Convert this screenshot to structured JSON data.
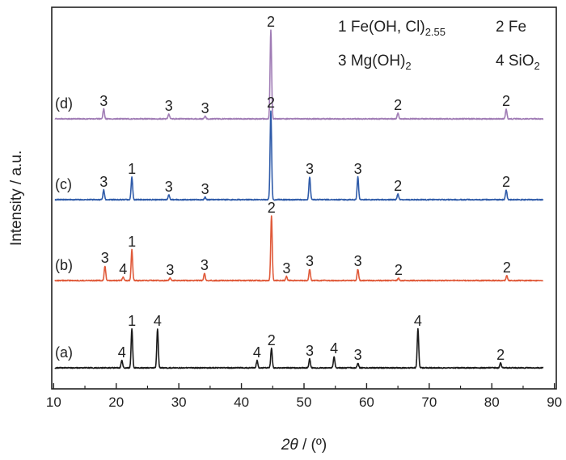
{
  "chart_data": {
    "type": "line",
    "xlabel_italic": "2θ",
    "xlabel_rest": " / (º)",
    "ylabel": "Intensity / a.u.",
    "xlim": [
      9.7,
      90.3
    ],
    "x_ticks": [
      10,
      20,
      30,
      40,
      50,
      60,
      70,
      80,
      90
    ],
    "y_ticks": "none",
    "legend": {
      "placement": "top-right",
      "entries": [
        {
          "prefix": "1 Fe(OH, Cl)",
          "sub": "2.55"
        },
        {
          "prefix": "2 Fe",
          "sub": ""
        },
        {
          "prefix": "3 Mg(OH)",
          "sub": "2"
        },
        {
          "prefix": "4 SiO",
          "sub": "2"
        }
      ]
    },
    "series": [
      {
        "name": "(d)",
        "color": "#a07cb5",
        "baseline": 3.0,
        "peaks": [
          {
            "x": 18.0,
            "h": 0.12,
            "label": "3"
          },
          {
            "x": 28.4,
            "h": 0.06,
            "label": "3"
          },
          {
            "x": 34.2,
            "h": 0.03,
            "label": "3"
          },
          {
            "x": 44.7,
            "h": 1.1,
            "label": "2"
          },
          {
            "x": 65.0,
            "h": 0.07,
            "label": "2"
          },
          {
            "x": 82.3,
            "h": 0.12,
            "label": "2"
          }
        ]
      },
      {
        "name": "(c)",
        "color": "#2f5ba9",
        "baseline": 2.0,
        "peaks": [
          {
            "x": 18.0,
            "h": 0.12,
            "label": "3"
          },
          {
            "x": 22.5,
            "h": 0.28,
            "label": "1"
          },
          {
            "x": 28.4,
            "h": 0.06,
            "label": "3"
          },
          {
            "x": 34.2,
            "h": 0.03,
            "label": "3"
          },
          {
            "x": 44.7,
            "h": 1.1,
            "label": "2"
          },
          {
            "x": 50.9,
            "h": 0.28,
            "label": "3"
          },
          {
            "x": 58.6,
            "h": 0.28,
            "label": "3"
          },
          {
            "x": 65.0,
            "h": 0.07,
            "label": "2"
          },
          {
            "x": 82.3,
            "h": 0.12,
            "label": "2"
          }
        ]
      },
      {
        "name": "(b)",
        "color": "#e05a3a",
        "baseline": 1.0,
        "peaks": [
          {
            "x": 18.2,
            "h": 0.18,
            "label": "3"
          },
          {
            "x": 21.1,
            "h": 0.04,
            "label": "4"
          },
          {
            "x": 22.5,
            "h": 0.38,
            "label": "1"
          },
          {
            "x": 28.6,
            "h": 0.03,
            "label": "3"
          },
          {
            "x": 34.1,
            "h": 0.09,
            "label": "3"
          },
          {
            "x": 44.8,
            "h": 0.8,
            "label": "2"
          },
          {
            "x": 47.2,
            "h": 0.05,
            "label": "3"
          },
          {
            "x": 50.9,
            "h": 0.14,
            "label": "3"
          },
          {
            "x": 58.6,
            "h": 0.14,
            "label": "3"
          },
          {
            "x": 65.1,
            "h": 0.03,
            "label": "2"
          },
          {
            "x": 82.4,
            "h": 0.06,
            "label": "2"
          }
        ]
      },
      {
        "name": "(a)",
        "color": "#1a1a1a",
        "baseline": 0.0,
        "peaks": [
          {
            "x": 20.9,
            "h": 0.09,
            "label": "4"
          },
          {
            "x": 22.5,
            "h": 0.48,
            "label": "1"
          },
          {
            "x": 26.6,
            "h": 0.48,
            "label": "4"
          },
          {
            "x": 42.5,
            "h": 0.09,
            "label": "4"
          },
          {
            "x": 44.8,
            "h": 0.24,
            "label": "2"
          },
          {
            "x": 50.9,
            "h": 0.11,
            "label": "3"
          },
          {
            "x": 54.8,
            "h": 0.14,
            "label": "4"
          },
          {
            "x": 58.6,
            "h": 0.06,
            "label": "3"
          },
          {
            "x": 68.2,
            "h": 0.48,
            "label": "4"
          },
          {
            "x": 81.4,
            "h": 0.06,
            "label": "2"
          }
        ]
      }
    ]
  }
}
